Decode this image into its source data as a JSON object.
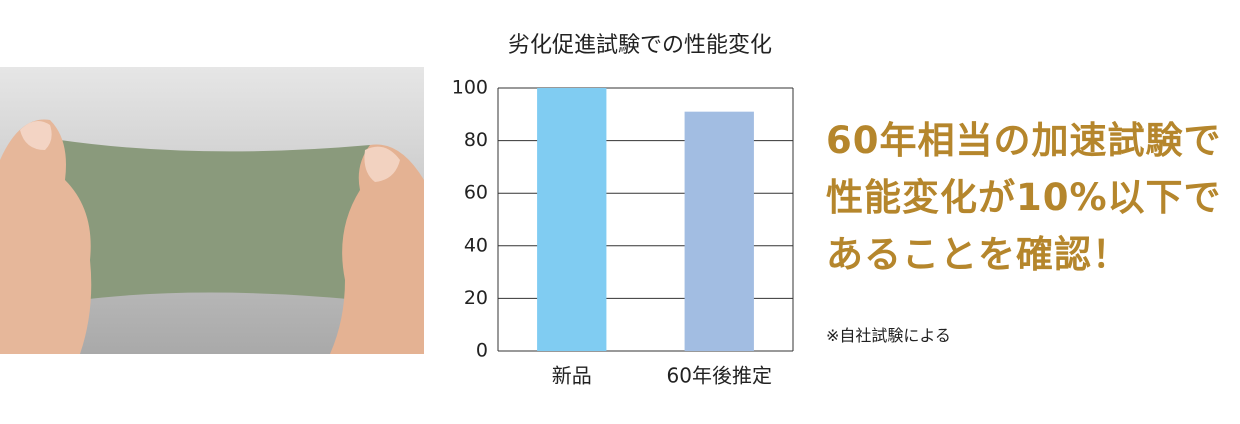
{
  "chart_data": {
    "type": "bar",
    "title": "劣化促進試験での性能変化",
    "categories": [
      "新品",
      "60年後推定"
    ],
    "values": [
      100,
      91
    ],
    "colors": [
      "#80ccf2",
      "#a2bde2"
    ],
    "ylim": [
      0,
      100
    ],
    "yticks": [
      0,
      20,
      40,
      60,
      80,
      100
    ],
    "grid": true
  },
  "headline": [
    "60年相当の加速試験で",
    "性能変化が10%以下で",
    "あることを確認！"
  ],
  "note": "※自社試験による"
}
